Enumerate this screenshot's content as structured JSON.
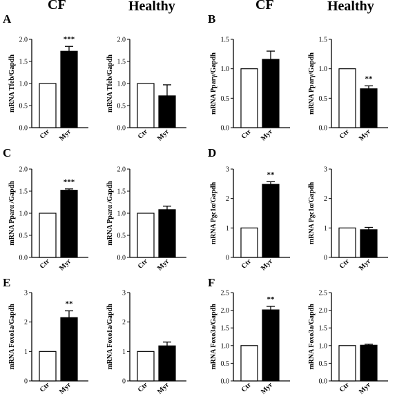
{
  "headers": [
    "CF",
    "Healthy",
    "CF",
    "Healthy"
  ],
  "panel_letters": [
    "A",
    "B",
    "C",
    "D",
    "E",
    "F"
  ],
  "colors": {
    "ctr_fill": "#ffffff",
    "myr_fill": "#000000",
    "stroke": "#000000"
  },
  "chart_data": [
    {
      "type": "bar",
      "group": "CF",
      "panel": "A",
      "ylabel": "mRNA Tfeb/Gapdh",
      "categories": [
        "Ctr",
        "Myr"
      ],
      "values": [
        1.0,
        1.73
      ],
      "errors": [
        0,
        0.11
      ],
      "yticks": [
        "0.0",
        "0.5",
        "1.0",
        "1.5",
        "2.0"
      ],
      "ylim": [
        0,
        2.0
      ],
      "significance": "***"
    },
    {
      "type": "bar",
      "group": "Healthy",
      "panel": "A",
      "ylabel": "mRNA Tfeb/Gapdh",
      "categories": [
        "Ctr",
        "Myr"
      ],
      "values": [
        1.0,
        0.72
      ],
      "errors": [
        0,
        0.25
      ],
      "yticks": [
        "0.0",
        "0.5",
        "1.0",
        "1.5",
        "2.0"
      ],
      "ylim": [
        0,
        2.0
      ],
      "significance": ""
    },
    {
      "type": "bar",
      "group": "CF",
      "panel": "B",
      "ylabel": "mRNA Pparγ/Gapdh",
      "categories": [
        "Ctr",
        "Myr"
      ],
      "values": [
        1.0,
        1.16
      ],
      "errors": [
        0,
        0.14
      ],
      "yticks": [
        "0.0",
        "0.5",
        "1.0",
        "1.5"
      ],
      "ylim": [
        0,
        1.5
      ],
      "significance": ""
    },
    {
      "type": "bar",
      "group": "Healthy",
      "panel": "B",
      "ylabel": "mRNA Pparγ/Gapdh",
      "categories": [
        "Ctr",
        "Myr"
      ],
      "values": [
        1.0,
        0.66
      ],
      "errors": [
        0,
        0.05
      ],
      "yticks": [
        "0.0",
        "0.5",
        "1.0",
        "1.5"
      ],
      "ylim": [
        0,
        1.5
      ],
      "significance": "**"
    },
    {
      "type": "bar",
      "group": "CF",
      "panel": "C",
      "ylabel": "mRNA Pparα /Gapdh",
      "categories": [
        "Ctr",
        "Myr"
      ],
      "values": [
        1.0,
        1.52
      ],
      "errors": [
        0,
        0.03
      ],
      "yticks": [
        "0.0",
        "0.5",
        "1.0",
        "1.5",
        "2.0"
      ],
      "ylim": [
        0,
        2.0
      ],
      "significance": "***"
    },
    {
      "type": "bar",
      "group": "Healthy",
      "panel": "C",
      "ylabel": "mRNA Pparα /Gapdh",
      "categories": [
        "Ctr",
        "Myr"
      ],
      "values": [
        1.0,
        1.08
      ],
      "errors": [
        0,
        0.08
      ],
      "yticks": [
        "0.0",
        "0.5",
        "1.0",
        "1.5",
        "2.0"
      ],
      "ylim": [
        0,
        2.0
      ],
      "significance": ""
    },
    {
      "type": "bar",
      "group": "CF",
      "panel": "D",
      "ylabel": "mRNA Pgc1α/Gapdh",
      "categories": [
        "Ctr",
        "Myr"
      ],
      "values": [
        1.0,
        2.48
      ],
      "errors": [
        0,
        0.09
      ],
      "yticks": [
        "0",
        "1",
        "2",
        "3"
      ],
      "ylim": [
        0,
        3
      ],
      "significance": "**"
    },
    {
      "type": "bar",
      "group": "Healthy",
      "panel": "D",
      "ylabel": "mRNA Pgc1α/Gapdh",
      "categories": [
        "Ctr",
        "Myr"
      ],
      "values": [
        1.0,
        0.94
      ],
      "errors": [
        0,
        0.08
      ],
      "yticks": [
        "0",
        "1",
        "2",
        "3"
      ],
      "ylim": [
        0,
        3
      ],
      "significance": ""
    },
    {
      "type": "bar",
      "group": "CF",
      "panel": "E",
      "ylabel": "mRNA Foxo1a/Gapdh",
      "categories": [
        "Ctr",
        "Myr"
      ],
      "values": [
        1.0,
        2.15
      ],
      "errors": [
        0,
        0.23
      ],
      "yticks": [
        "0",
        "1",
        "2",
        "3"
      ],
      "ylim": [
        0,
        3
      ],
      "significance": "**"
    },
    {
      "type": "bar",
      "group": "Healthy",
      "panel": "E",
      "ylabel": "mRNA Foxo1a/Gapdh",
      "categories": [
        "Ctr",
        "Myr"
      ],
      "values": [
        1.0,
        1.19
      ],
      "errors": [
        0,
        0.13
      ],
      "yticks": [
        "0",
        "1",
        "2",
        "3"
      ],
      "ylim": [
        0,
        3
      ],
      "significance": ""
    },
    {
      "type": "bar",
      "group": "CF",
      "panel": "F",
      "ylabel": "mRNA Foxo3a/Gapdh",
      "categories": [
        "Ctr",
        "Myr"
      ],
      "values": [
        1.0,
        2.01
      ],
      "errors": [
        0,
        0.1
      ],
      "yticks": [
        "0.0",
        "0.5",
        "1.0",
        "1.5",
        "2.0",
        "2.5"
      ],
      "ylim": [
        0,
        2.5
      ],
      "significance": "**"
    },
    {
      "type": "bar",
      "group": "Healthy",
      "panel": "F",
      "ylabel": "mRNA Foxo3a/Gapdh",
      "categories": [
        "Ctr",
        "Myr"
      ],
      "values": [
        1.0,
        1.01
      ],
      "errors": [
        0,
        0.03
      ],
      "yticks": [
        "0.0",
        "0.5",
        "1.0",
        "1.5",
        "2.0",
        "2.5"
      ],
      "ylim": [
        0,
        2.5
      ],
      "significance": ""
    }
  ]
}
